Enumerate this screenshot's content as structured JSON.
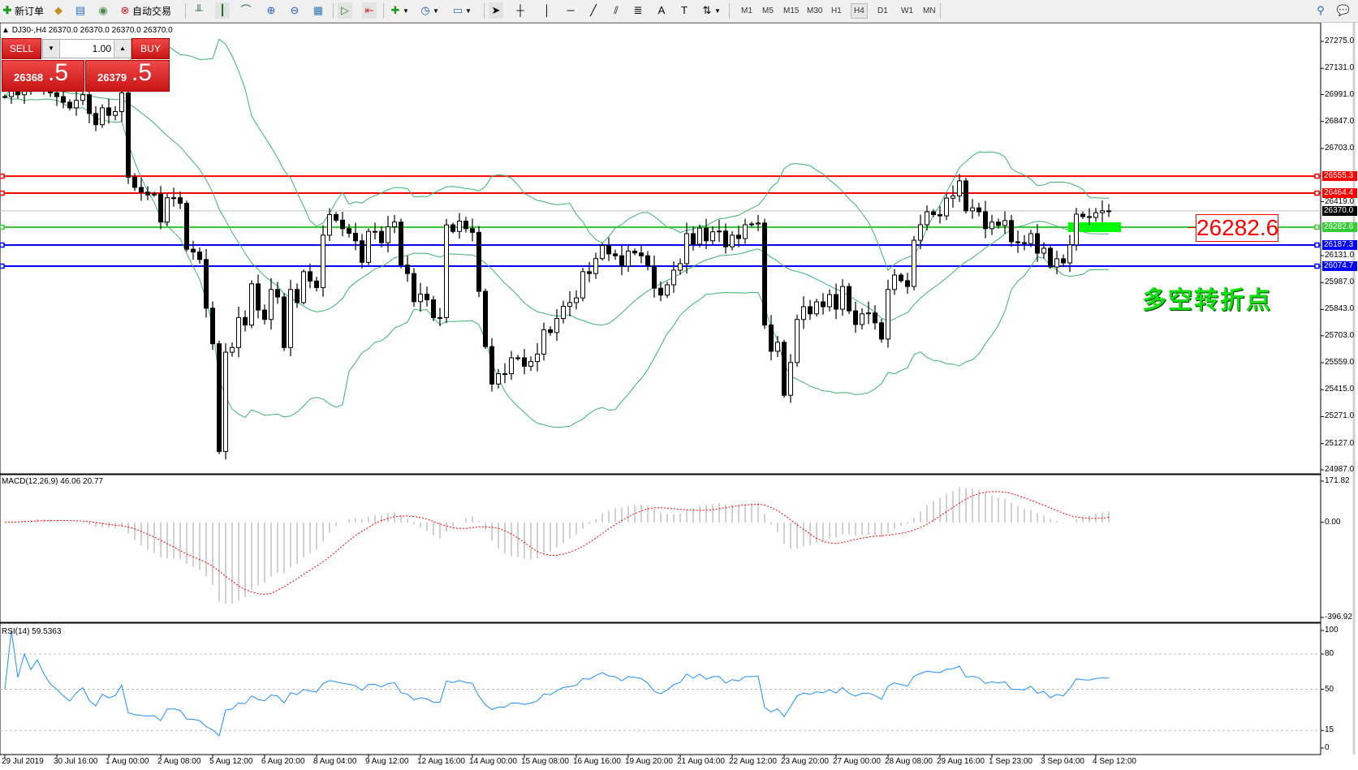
{
  "toolbar": {
    "new_order_label": "新订单",
    "auto_trading_label": "自动交易",
    "timeframes": [
      "M1",
      "M5",
      "M15",
      "M30",
      "H1",
      "H4",
      "D1",
      "W1",
      "MN"
    ],
    "active_timeframe": "H4"
  },
  "chart": {
    "symbol": "DJ30-,H4",
    "ohlc": "26370.0 26370.0 26370.0 26370.0"
  },
  "trade_panel": {
    "sell_label": "SELL",
    "buy_label": "BUY",
    "lot": "1.00",
    "sell_price_main": "26368",
    "sell_price_frac": ".5",
    "buy_price_main": "26379",
    "buy_price_frac": ".5"
  },
  "price_axis": {
    "ticks": [
      "27275.0",
      "27131.0",
      "26991.0",
      "26847.0",
      "26703.0",
      "26419.0",
      "26131.0",
      "25987.0",
      "25843.0",
      "25703.0",
      "25559.0",
      "25415.0",
      "25271.0",
      "25127.0",
      "24987.0"
    ]
  },
  "levels": [
    {
      "price": "26555.3",
      "color": "#ff0000",
      "kind": "resistance"
    },
    {
      "price": "26464.4",
      "color": "#ff0000",
      "kind": "resistance"
    },
    {
      "price": "26370.0",
      "color": "#000000",
      "kind": "bid"
    },
    {
      "price": "26282.6",
      "color": "#33cc33",
      "kind": "pivot"
    },
    {
      "price": "26187.3",
      "color": "#0000ff",
      "kind": "support"
    },
    {
      "price": "26074.7",
      "color": "#0000ff",
      "kind": "support"
    }
  ],
  "annotation": {
    "price_box": "26282.6",
    "text": "多空转折点",
    "zone_color": "#00ff00"
  },
  "macd": {
    "label": "MACD(12,26,9) 46.06 20.77",
    "ticks": [
      "171.82",
      "0.00",
      "-396.92"
    ]
  },
  "rsi": {
    "label": "RSI(14) 59.5363",
    "ticks": [
      "100",
      "80",
      "50",
      "15",
      "0"
    ],
    "levels": [
      80,
      50,
      15
    ]
  },
  "time_axis": {
    "labels": [
      "29 Jul 2019",
      "30 Jul 16:00",
      "1 Aug 00:00",
      "2 Aug 08:00",
      "5 Aug 12:00",
      "6 Aug 20:00",
      "8 Aug 04:00",
      "9 Aug 12:00",
      "12 Aug 16:00",
      "14 Aug 00:00",
      "15 Aug 08:00",
      "16 Aug 16:00",
      "19 Aug 20:00",
      "21 Aug 04:00",
      "22 Aug 12:00",
      "23 Aug 20:00",
      "27 Aug 00:00",
      "28 Aug 08:00",
      "29 Aug 16:00",
      "1 Sep 23:00",
      "3 Sep 04:00",
      "4 Sep 12:00"
    ]
  },
  "colors": {
    "bollinger": "#3cb371",
    "macd_hist": "#c0c0c0",
    "macd_signal": "#ff0000",
    "rsi_line": "#1e90ff",
    "bid_line": "#c0c0c0"
  },
  "chart_data": {
    "type": "candlestick",
    "timeframe": "H4",
    "ylim": [
      24987.0,
      27275.0
    ],
    "closes": [
      26980,
      27010,
      26990,
      27040,
      27020,
      27060,
      27030,
      27000,
      26980,
      26950,
      26920,
      26960,
      26990,
      26890,
      26830,
      26920,
      26880,
      26900,
      27000,
      26550,
      26495,
      26470,
      26455,
      26460,
      26310,
      26440,
      26440,
      26410,
      26165,
      26150,
      26110,
      25850,
      25660,
      25085,
      25615,
      25640,
      25800,
      25760,
      25980,
      25840,
      25790,
      25950,
      25910,
      25640,
      25950,
      25880,
      26045,
      25995,
      25960,
      26240,
      26350,
      26320,
      26275,
      26250,
      26210,
      26095,
      26260,
      26260,
      26200,
      26285,
      26310,
      26080,
      26035,
      25885,
      25925,
      25895,
      25800,
      25800,
      26295,
      26260,
      26315,
      26275,
      26255,
      25940,
      25645,
      25445,
      25500,
      25500,
      25585,
      25585,
      25540,
      25565,
      25605,
      25735,
      25720,
      25795,
      25860,
      25880,
      25905,
      26045,
      26035,
      26115,
      26185,
      26140,
      26130,
      26075,
      26155,
      26145,
      26130,
      26075,
      25957,
      25920,
      25975,
      26053,
      26088,
      26248,
      26192,
      26278,
      26210,
      26258,
      26262,
      26178,
      26240,
      26222,
      26296,
      26300,
      26305,
      25760,
      25620,
      25668,
      25385,
      25560,
      25790,
      25858,
      25820,
      25884,
      25858,
      25923,
      25845,
      25966,
      25836,
      25763,
      25820,
      25825,
      25772,
      25685,
      25950,
      26027,
      25997,
      25966,
      26213,
      26296,
      26365,
      26350,
      26343,
      26438,
      26450,
      26530,
      26370,
      26386,
      26365,
      26275,
      26310,
      26292,
      26318,
      26205,
      26200,
      26195,
      26248,
      26144,
      26170,
      26070,
      26114,
      26092,
      26188,
      26352,
      26339,
      26335,
      26360,
      26370,
      26370
    ]
  }
}
